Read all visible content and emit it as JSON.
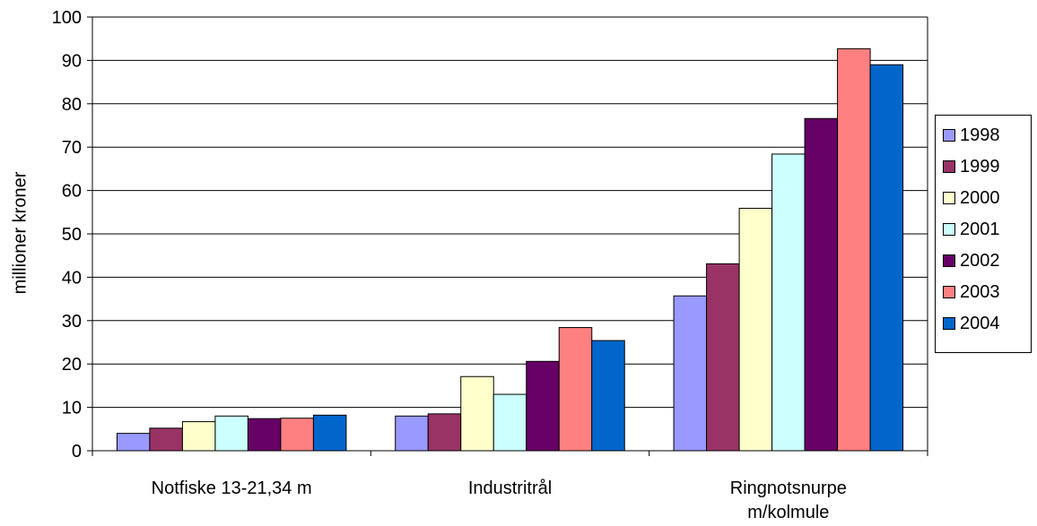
{
  "chart_data": {
    "type": "bar",
    "title": "",
    "xlabel": "",
    "ylabel": "millioner kroner",
    "ylim": [
      0,
      100
    ],
    "yticks": [
      0,
      10,
      20,
      30,
      40,
      50,
      60,
      70,
      80,
      90,
      100
    ],
    "categories": [
      "Notfiske 13-21,34 m",
      "Industritrål",
      "Ringnotsnurpe m/kolmule"
    ],
    "series": [
      {
        "name": "1998",
        "color": "#9999FF",
        "values": [
          4.0,
          8.0,
          35.7
        ]
      },
      {
        "name": "1999",
        "color": "#993366",
        "values": [
          5.2,
          8.5,
          43.1
        ]
      },
      {
        "name": "2000",
        "color": "#FFFFCC",
        "values": [
          6.7,
          17.1,
          55.9
        ]
      },
      {
        "name": "2001",
        "color": "#CCFFFF",
        "values": [
          8.0,
          13.0,
          68.4
        ]
      },
      {
        "name": "2002",
        "color": "#660066",
        "values": [
          7.4,
          20.6,
          76.6
        ]
      },
      {
        "name": "2003",
        "color": "#FF8080",
        "values": [
          7.5,
          28.4,
          92.7
        ]
      },
      {
        "name": "2004",
        "color": "#0066CC",
        "values": [
          8.2,
          25.4,
          89.0
        ]
      }
    ],
    "grid": true,
    "legend_position": "right"
  }
}
